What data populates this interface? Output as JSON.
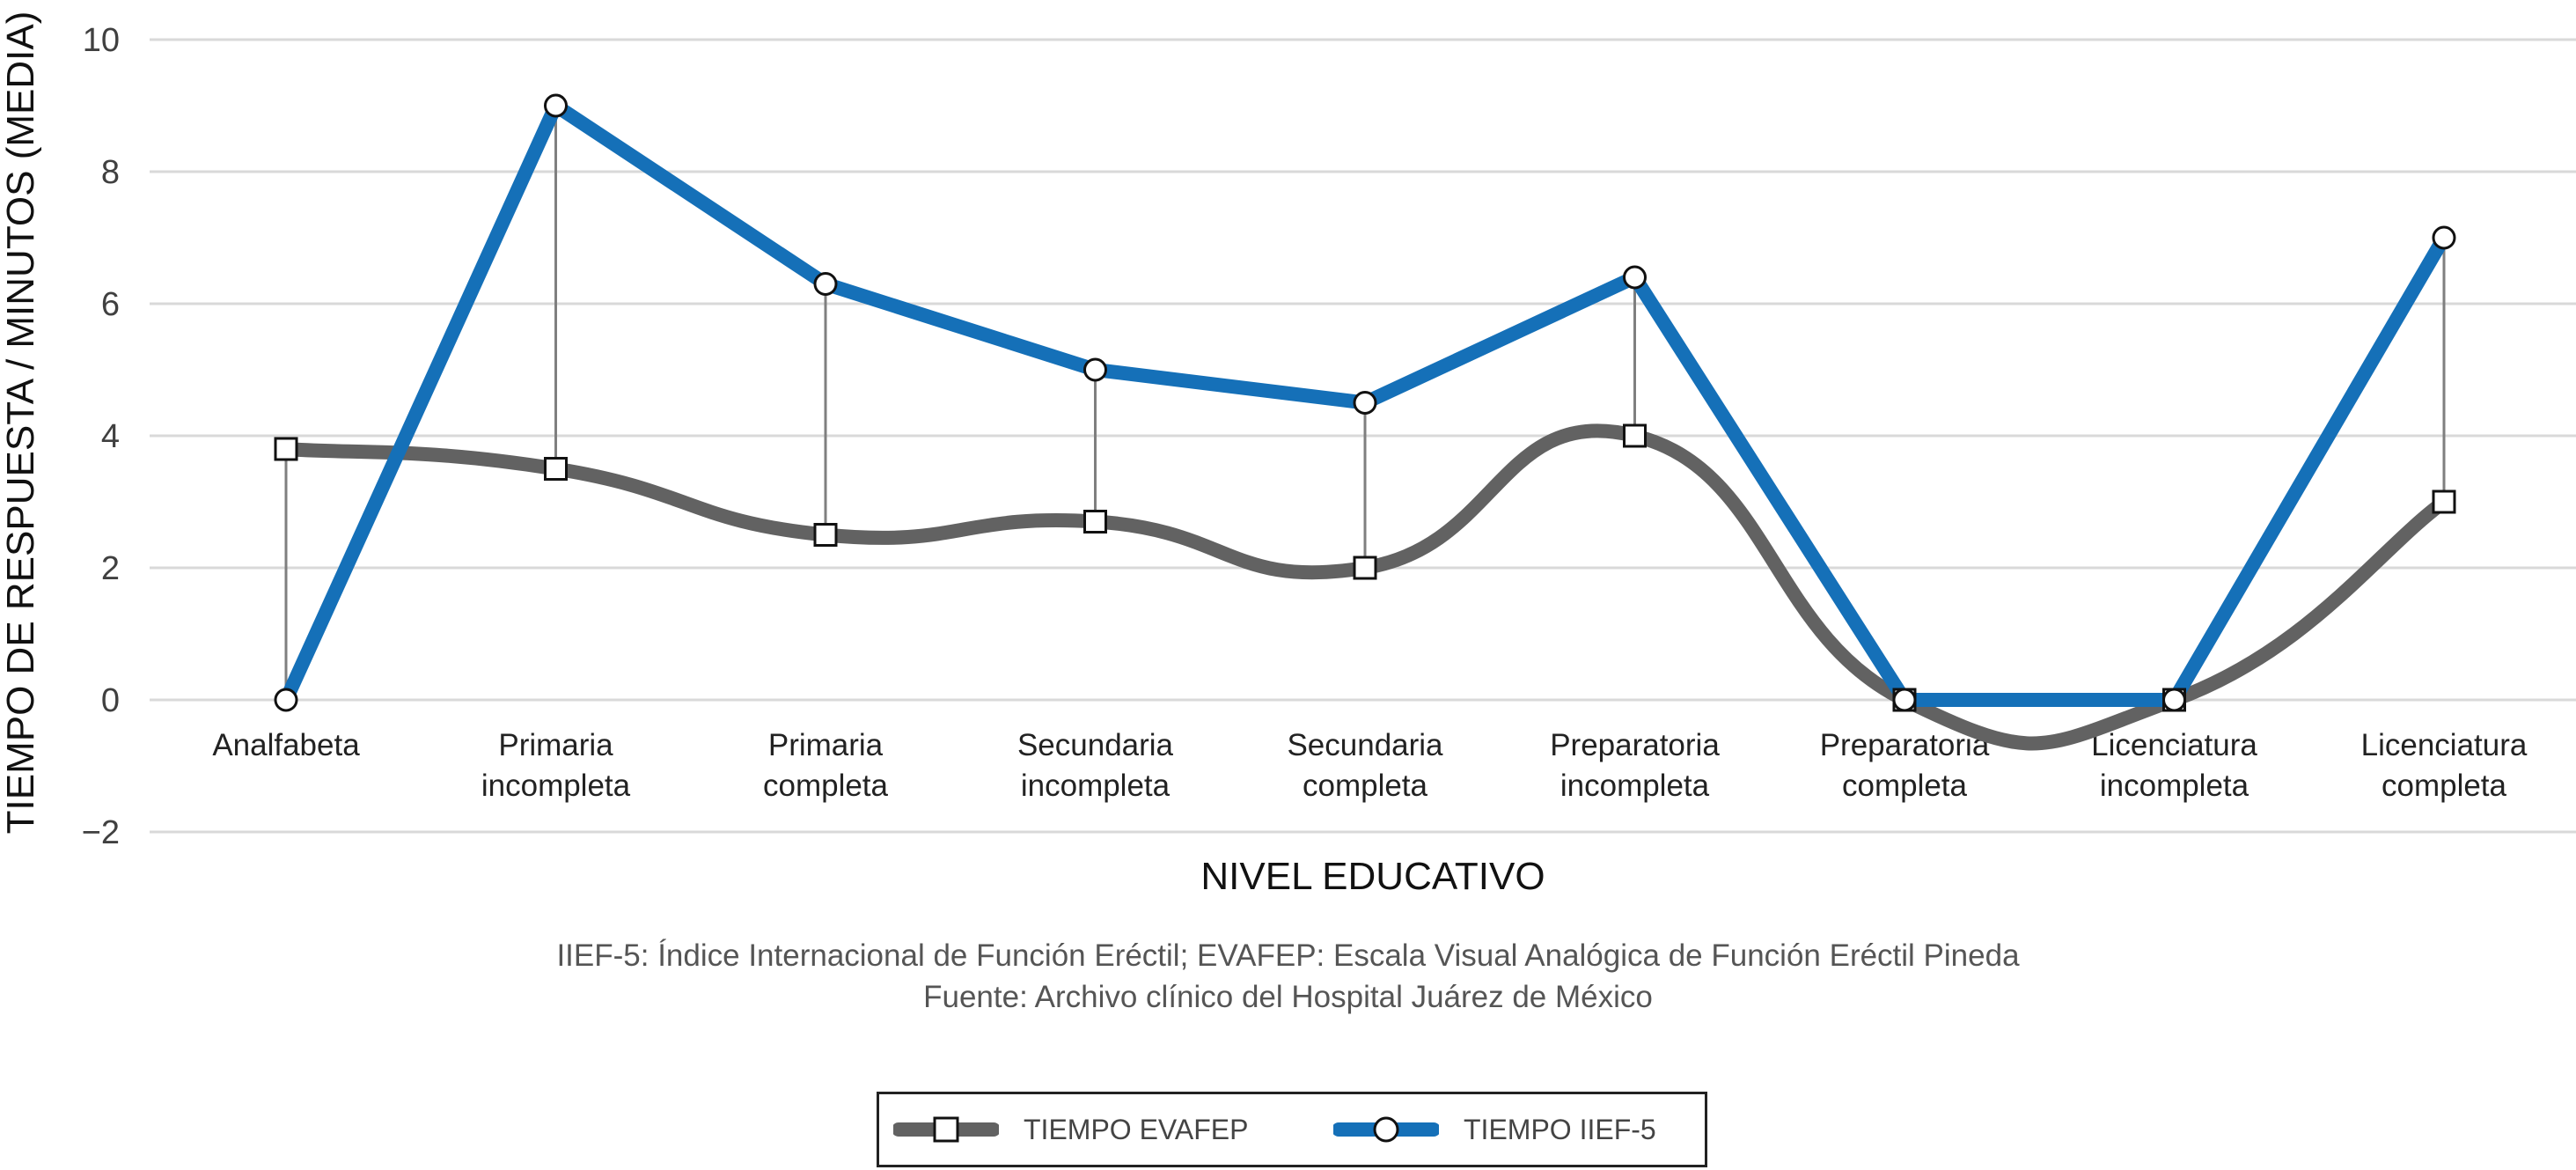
{
  "chart_data": {
    "type": "line",
    "categories": [
      [
        "Analfabeta"
      ],
      [
        "Primaria",
        "incompleta"
      ],
      [
        "Primaria",
        "completa"
      ],
      [
        "Secundaria",
        "incompleta"
      ],
      [
        "Secundaria",
        "completa"
      ],
      [
        "Preparatoria",
        "incompleta"
      ],
      [
        "Preparatoria",
        "completa"
      ],
      [
        "Licenciatura",
        "incompleta"
      ],
      [
        "Licenciatura",
        "completa"
      ]
    ],
    "series": [
      {
        "name": "TIEMPO EVAFEP",
        "values": [
          3.8,
          3.5,
          2.5,
          2.7,
          2.0,
          4.0,
          0.0,
          0.0,
          3.0
        ],
        "color": "#626262",
        "marker": "square",
        "smooth": true
      },
      {
        "name": "TIEMPO IIEF-5",
        "values": [
          0.0,
          9.0,
          6.3,
          5.0,
          4.5,
          6.4,
          0.0,
          0.0,
          7.0
        ],
        "color": "#1570b8",
        "marker": "circle",
        "smooth": false
      }
    ],
    "xlabel": "NIVEL EDUCATIVO",
    "ylabel": "TIEMPO DE RESPUESTA / MINUTOS (MEDIA)",
    "ylim": [
      -2,
      10
    ],
    "yticks": [
      -2,
      0,
      2,
      4,
      6,
      8,
      10
    ],
    "ytick_labels": [
      "−2",
      "0",
      "2",
      "4",
      "6",
      "8",
      "10"
    ],
    "grid": "horizontal",
    "high_low_lines": true,
    "legend_position": "bottom-center"
  },
  "notes": [
    "IIEF-5: Índice Internacional de Función Eréctil; EVAFEP: Escala Visual Analógica de Función Eréctil Pineda",
    "Fuente: Archivo clínico del Hospital Juárez de México"
  ],
  "legend": {
    "items": [
      {
        "label": "TIEMPO EVAFEP"
      },
      {
        "label": "TIEMPO IIEF-5"
      }
    ]
  }
}
